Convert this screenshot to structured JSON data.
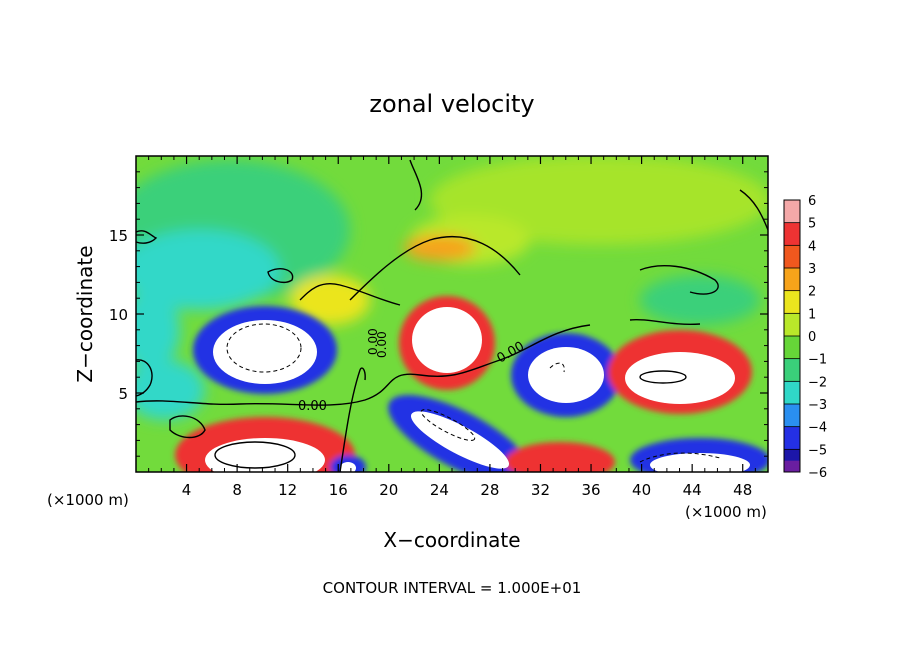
{
  "chart_data": {
    "type": "heatmap",
    "title": "zonal velocity",
    "xlabel": "X−coordinate",
    "ylabel": "Z−coordinate",
    "x_units": "(×1000 m)",
    "y_units": "(×1000 m)",
    "footer": "CONTOUR INTERVAL = 1.000E+01",
    "xlim": [
      0,
      50
    ],
    "ylim": [
      0,
      20
    ],
    "xticks": [
      4,
      8,
      12,
      16,
      20,
      24,
      28,
      32,
      36,
      40,
      44,
      48
    ],
    "yticks": [
      5,
      10,
      15
    ],
    "colorbar": {
      "ticks": [
        6,
        5,
        4,
        3,
        2,
        1,
        0,
        -1,
        -2,
        -3,
        -4,
        -5,
        -6
      ],
      "colors": [
        "#f4a8a8",
        "#ee3333",
        "#f0581e",
        "#f7a31a",
        "#ebe51e",
        "#b9e82a",
        "#66d638",
        "#3ad07a",
        "#30d8c8",
        "#2a8ff0",
        "#2430e4",
        "#1c16a8",
        "#6a1ea0"
      ]
    },
    "contour_labels": [
      "0.00",
      "0.00",
      "0.00",
      "0.00"
    ],
    "grid": false,
    "legend": "colorbar-right"
  }
}
